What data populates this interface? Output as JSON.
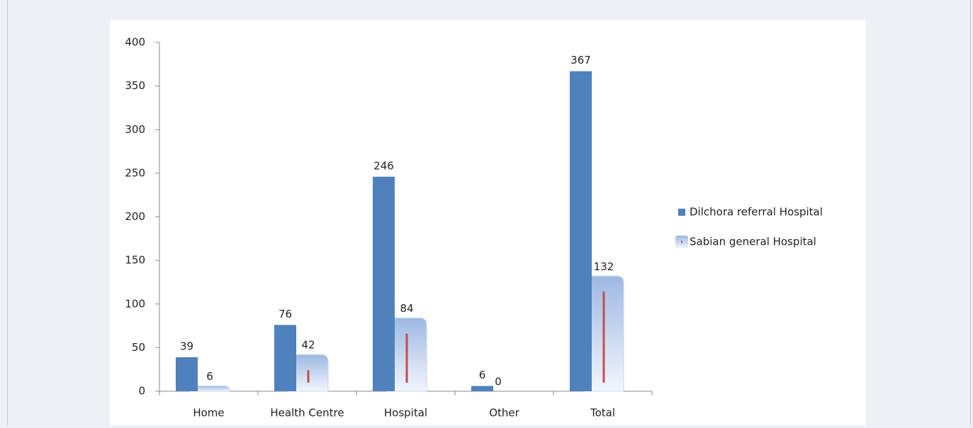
{
  "chart_data": {
    "type": "bar",
    "categories": [
      "Home",
      "Health Centre",
      "Hospital",
      "Other",
      "Total"
    ],
    "series": [
      {
        "name": "Dilchora referral Hospital",
        "color": "#4f81bd",
        "values": [
          39,
          76,
          246,
          6,
          367
        ]
      },
      {
        "name": "Sabian general Hospital",
        "color": "#9db8e2",
        "values": [
          6,
          42,
          84,
          0,
          132
        ]
      }
    ],
    "ylim": [
      0,
      400
    ],
    "yticks": [
      0,
      50,
      100,
      150,
      200,
      250,
      300,
      350,
      400
    ],
    "grid": false,
    "legend": "right"
  }
}
